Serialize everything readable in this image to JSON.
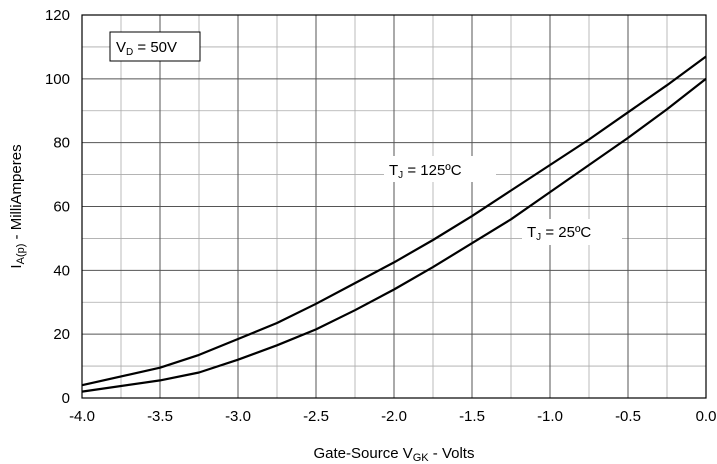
{
  "chart_data": {
    "type": "line",
    "title": "",
    "xlabel": {
      "main": "Gate-Source V",
      "sub": "GK",
      "suffix": " - Volts"
    },
    "ylabel": {
      "main": "I",
      "sub": "A(p)",
      "suffix": " - MilliAmperes"
    },
    "xlim": [
      -4.0,
      0.0
    ],
    "ylim": [
      0,
      120
    ],
    "x_major_step": 0.5,
    "x_minor_step": 0.25,
    "y_major_step": 20,
    "y_minor_step": 10,
    "grid": true,
    "x_tick_labels": [
      "-4.0",
      "-3.5",
      "-3.0",
      "-2.5",
      "-2.0",
      "-1.5",
      "-1.0",
      "-0.5",
      "0.0"
    ],
    "y_tick_labels": [
      "0",
      "20",
      "40",
      "60",
      "80",
      "100",
      "120"
    ],
    "legend_box": {
      "main": "V",
      "sub": "D",
      "suffix": " = 50V"
    },
    "series": [
      {
        "name": "TJ = 125ºC",
        "label": {
          "main": "T",
          "sub": "J",
          "suffix": " = 125ºC"
        },
        "x": [
          -4.0,
          -3.5,
          -3.25,
          -3.0,
          -2.75,
          -2.5,
          -2.25,
          -2.0,
          -1.75,
          -1.5,
          -1.25,
          -1.0,
          -0.75,
          -0.5,
          -0.25,
          0.0
        ],
        "y": [
          4,
          9.5,
          13.5,
          18.5,
          23.5,
          29.5,
          36,
          42.5,
          49.5,
          57,
          65,
          73,
          81,
          89.5,
          98,
          107
        ]
      },
      {
        "name": "TJ = 25ºC",
        "label": {
          "main": "T",
          "sub": "J",
          "suffix": " = 25ºC"
        },
        "x": [
          -4.0,
          -3.5,
          -3.25,
          -3.0,
          -2.75,
          -2.5,
          -2.25,
          -2.0,
          -1.75,
          -1.5,
          -1.25,
          -1.0,
          -0.75,
          -0.5,
          -0.25,
          0.0
        ],
        "y": [
          2,
          5.5,
          8,
          12,
          16.5,
          21.5,
          27.5,
          34,
          41,
          48.5,
          56,
          64.5,
          73,
          81.5,
          90.5,
          100
        ]
      }
    ],
    "colors": {
      "line": "#000000",
      "grid": "#999999",
      "background": "#ffffff"
    }
  }
}
